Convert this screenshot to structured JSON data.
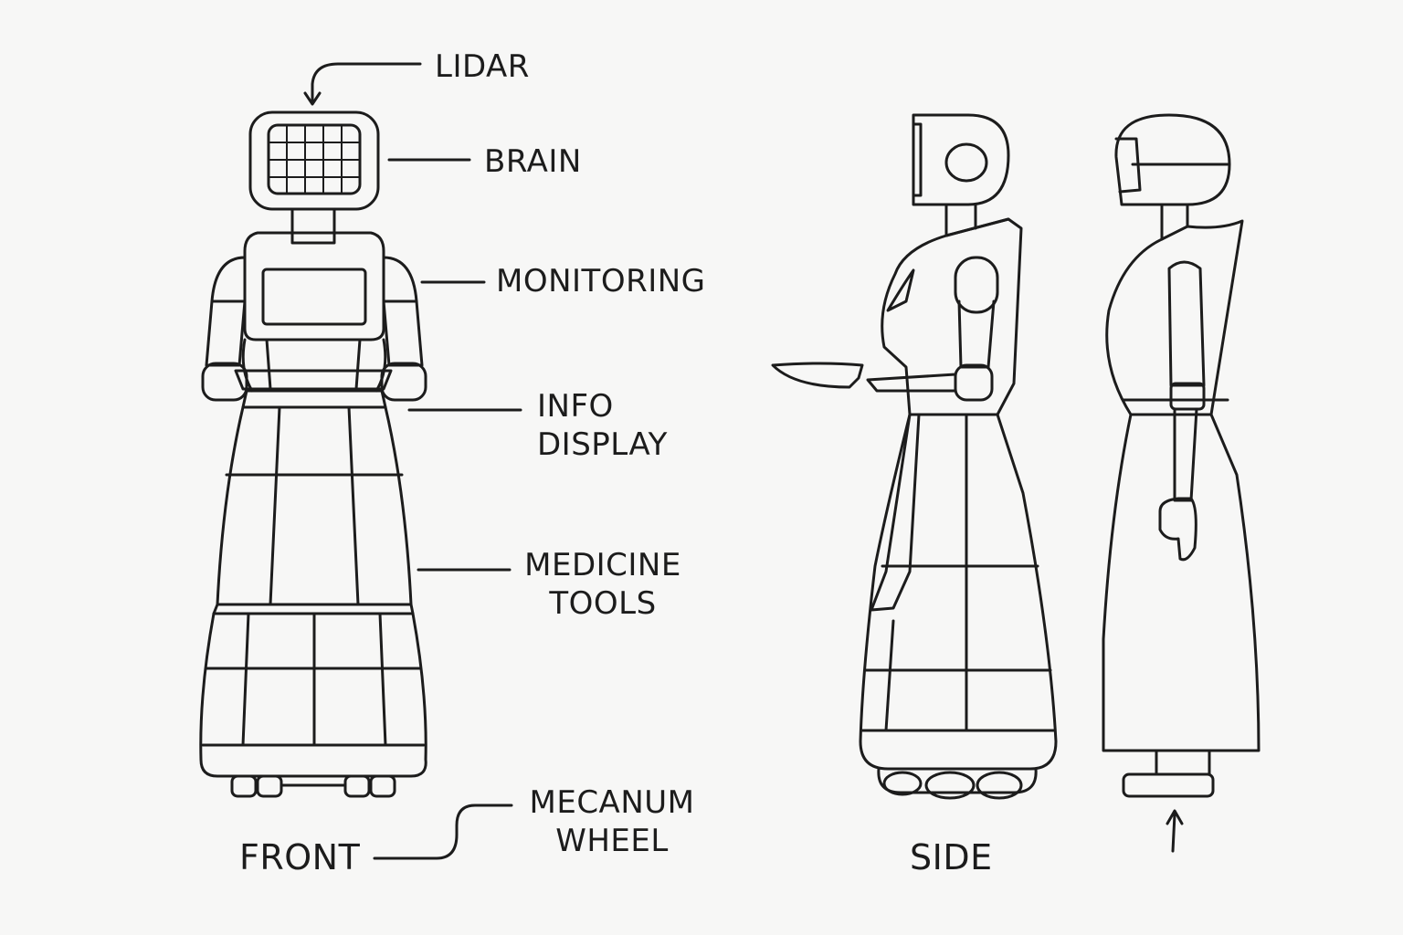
{
  "diagram": {
    "labels": {
      "lidar": "LIDAR",
      "brain": "BRAIN",
      "monitoring": "MONITORING",
      "info_display_1": "INFO",
      "info_display_2": "DISPLAY",
      "medicine_tools_1": "MEDICINE",
      "medicine_tools_2": "TOOLS",
      "mecanum_wheel_1": "MECANUM",
      "mecanum_wheel_2": "WHEEL"
    },
    "views": {
      "front": "FRONT",
      "side": "SIDE"
    }
  }
}
